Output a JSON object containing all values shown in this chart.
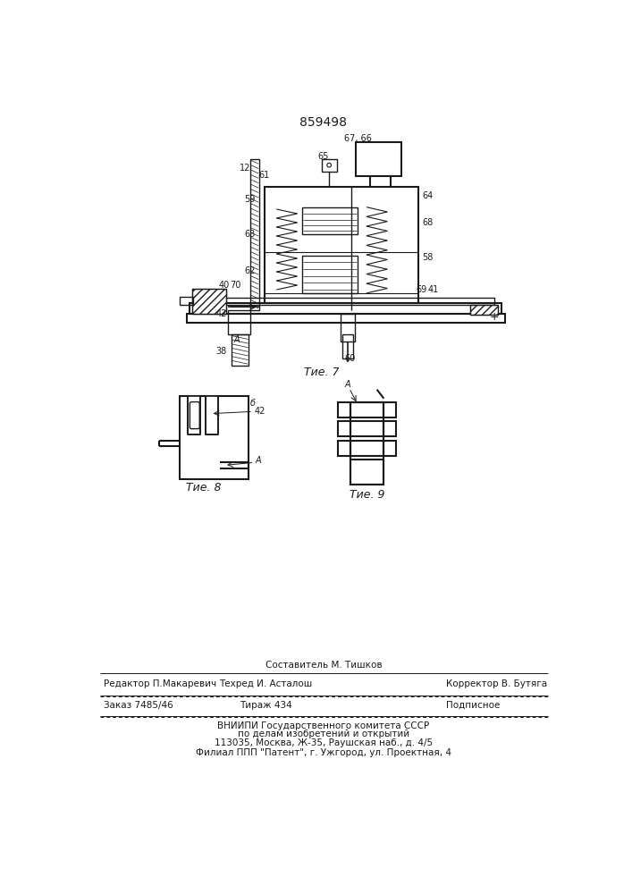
{
  "patent_number": "859498",
  "bg_color": "#ffffff",
  "line_color": "#1a1a1a",
  "fig7_label": "Τие. 7",
  "fig8_label": "Τие. 8",
  "fig9_label": "Τие. 9",
  "footer": {
    "line1_center_top": "Составитель М. Тишков",
    "line1_left": "Редактор П.Макаревич",
    "line1_center": "Техред И. Асталош",
    "line1_right": "Корректор В. Бутяга",
    "line2_left": "Заказ 7485/46",
    "line2_center": "Тираж 434",
    "line2_right": "Подписное",
    "line3": "ВНИИПИ Государственного комитета СССР",
    "line4": "по делам изобретений и открытий",
    "line5": "113035, Москва, Ж-35, Раушская наб., д. 4/5",
    "line6": "Филиал ППП \"Патент\", г. Ужгород, ул. Проектная, 4"
  }
}
